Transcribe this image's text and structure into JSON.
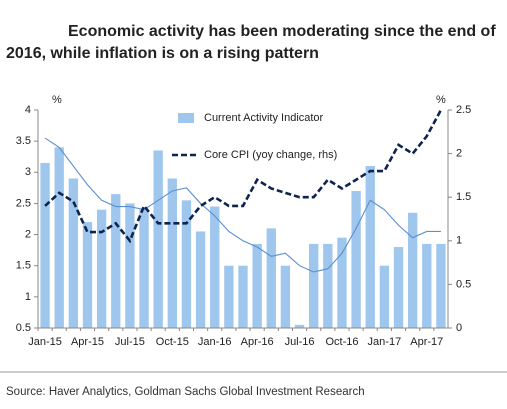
{
  "chart_data": {
    "type": "bar_line",
    "title_lines": [
      "Economic activity has been moderating since the end of",
      "2016, while inflation is on a rising pattern"
    ],
    "source": "Source: Haver Analytics, Goldman Sachs Global Investment Research",
    "y_unit": "%",
    "y2_unit": "%",
    "categories": [
      "Jan-15",
      null,
      null,
      "Apr-15",
      null,
      null,
      "Jul-15",
      null,
      null,
      "Oct-15",
      null,
      null,
      "Jan-16",
      null,
      null,
      "Apr-16",
      null,
      null,
      "Jul-16",
      null,
      null,
      "Oct-16",
      null,
      null,
      "Jan-17",
      null,
      null,
      "Apr-17",
      null
    ],
    "series": [
      {
        "name": "Current Activity Indicator",
        "color": "#9fc6ec",
        "kind": "bar",
        "values": [
          3.15,
          3.4,
          2.9,
          2.2,
          2.4,
          2.65,
          2.5,
          2.4,
          3.35,
          2.9,
          2.55,
          2.05,
          2.45,
          1.5,
          1.5,
          1.85,
          2.1,
          1.5,
          0.55,
          1.85,
          1.85,
          1.95,
          2.7,
          3.1,
          1.5,
          1.8,
          2.35,
          1.85,
          1.85
        ]
      },
      {
        "color": "#5b8fd0",
        "kind": "line",
        "values": [
          3.55,
          3.4,
          3.1,
          2.8,
          2.55,
          2.45,
          2.45,
          2.4,
          2.55,
          2.7,
          2.75,
          2.5,
          2.3,
          2.05,
          1.9,
          1.8,
          1.65,
          1.7,
          1.5,
          1.4,
          1.45,
          1.7,
          2.1,
          2.55,
          2.4,
          2.15,
          1.95,
          2.05,
          2.05
        ]
      },
      {
        "name": "Core CPI (yoy change, rhs)",
        "color": "#0d2450",
        "kind": "dashed",
        "axis": "y2",
        "values": [
          1.4,
          1.55,
          1.45,
          1.1,
          1.1,
          1.2,
          1.0,
          1.4,
          1.2,
          1.2,
          1.2,
          1.4,
          1.5,
          1.4,
          1.4,
          1.7,
          1.6,
          1.55,
          1.5,
          1.5,
          1.7,
          1.6,
          1.7,
          1.8,
          1.8,
          2.1,
          2.0,
          2.2,
          2.5
        ]
      }
    ],
    "ylim": [
      0.5,
      4
    ],
    "yticks": [
      0.5,
      1,
      1.5,
      2,
      2.5,
      3,
      3.5,
      4
    ],
    "y2lim": [
      0,
      2.5
    ],
    "y2ticks": [
      0,
      0.5,
      1,
      1.5,
      2,
      2.5
    ]
  }
}
